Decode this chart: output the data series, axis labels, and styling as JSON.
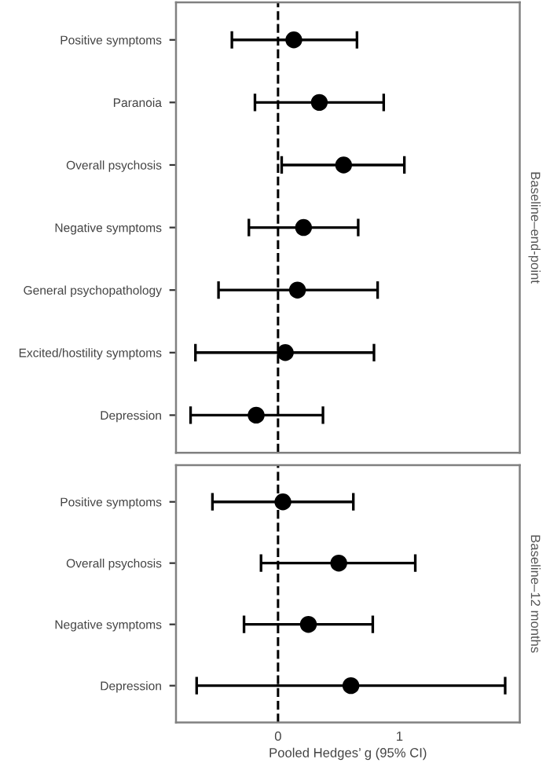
{
  "chart_data": [
    {
      "type": "scatter",
      "orientation": "horizontal",
      "categories": [
        "Positive symptoms",
        "Paranoia",
        "Overall psychosis",
        "Negative symptoms",
        "General psychopathology",
        "Excited/hostility symptoms",
        "Depression"
      ],
      "values": [
        0.13,
        0.34,
        0.54,
        0.21,
        0.16,
        0.06,
        -0.18
      ],
      "errors": [
        [
          -0.38,
          0.65
        ],
        [
          -0.19,
          0.87
        ],
        [
          0.03,
          1.04
        ],
        [
          -0.24,
          0.66
        ],
        [
          -0.49,
          0.82
        ],
        [
          -0.68,
          0.79
        ],
        [
          -0.72,
          0.37
        ]
      ],
      "color": "#000000",
      "marker": "circle",
      "xlim": [
        -0.84,
        1.99
      ],
      "xticks": [
        0,
        1
      ],
      "tick_labels": "y",
      "grid": false,
      "ref_lines": [
        {
          "axis": "x",
          "value": 0,
          "line_style": "dashed",
          "color": "#000000"
        }
      ],
      "annotations": [
        "Baseline–end-point"
      ]
    },
    {
      "type": "scatter",
      "orientation": "horizontal",
      "categories": [
        "Positive symptoms",
        "Overall psychosis",
        "Negative symptoms",
        "Depression"
      ],
      "values": [
        0.04,
        0.5,
        0.25,
        0.6
      ],
      "errors": [
        [
          -0.54,
          0.62
        ],
        [
          -0.14,
          1.13
        ],
        [
          -0.28,
          0.78
        ],
        [
          -0.67,
          1.87
        ]
      ],
      "color": "#000000",
      "marker": "circle",
      "xlim": [
        -0.84,
        1.99
      ],
      "xticks": [
        0,
        1
      ],
      "grid": false,
      "xlabel": "Pooled Hedges’ g (95% CI)",
      "ref_lines": [
        {
          "axis": "x",
          "value": 0,
          "line_style": "dashed",
          "color": "#000000"
        }
      ],
      "annotations": [
        "Baseline–12 months"
      ]
    }
  ]
}
